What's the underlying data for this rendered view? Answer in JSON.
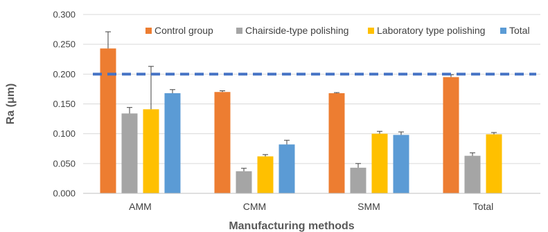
{
  "chart_data": {
    "type": "bar",
    "title": "",
    "xlabel": "Manufacturing methods",
    "ylabel": "Ra (μm)",
    "ylim": [
      0,
      0.3
    ],
    "yticks": [
      "0.000",
      "0.050",
      "0.100",
      "0.150",
      "0.200",
      "0.250",
      "0.300"
    ],
    "categories": [
      "AMM",
      "CMM",
      "SMM",
      "Total"
    ],
    "series": [
      {
        "name": "Control group",
        "color": "#ED7D31",
        "values": [
          0.243,
          0.17,
          0.168,
          0.195
        ],
        "errors": [
          0.028,
          0.002,
          0.001,
          0.004
        ]
      },
      {
        "name": "Chairside-type polishing",
        "color": "#A5A5A5",
        "values": [
          0.134,
          0.037,
          0.043,
          0.063
        ],
        "errors": [
          0.01,
          0.005,
          0.007,
          0.005
        ]
      },
      {
        "name": "Laboratory type polishing",
        "color": "#FFC000",
        "values": [
          0.141,
          0.062,
          0.1,
          0.099
        ],
        "errors": [
          0.072,
          0.003,
          0.004,
          0.003
        ]
      },
      {
        "name": "Total",
        "color": "#5B9BD5",
        "values": [
          0.168,
          0.082,
          0.098,
          null
        ],
        "errors": [
          0.006,
          0.007,
          0.005,
          null
        ]
      }
    ],
    "reference_line": {
      "value": 0.2,
      "color": "#4472C4",
      "style": "dashed"
    },
    "legend_position": "top-right",
    "grid": true
  }
}
